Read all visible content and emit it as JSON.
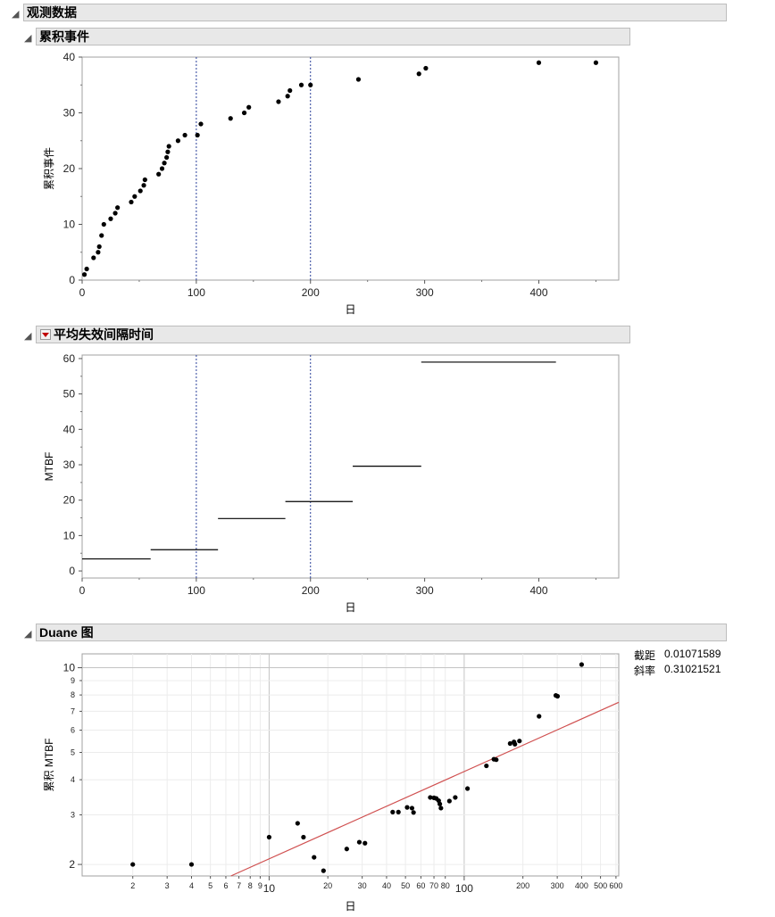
{
  "sections": {
    "observed": "观测数据",
    "cumulative": "累积事件",
    "mtbf": "平均失效间隔时间",
    "duane": "Duane 图"
  },
  "stats": {
    "intercept_label": "截距",
    "intercept_value": "0.01071589",
    "slope_label": "斜率",
    "slope_value": "0.31021521"
  },
  "chart_data": [
    {
      "type": "scatter",
      "title": "累积事件",
      "xlabel": "日",
      "ylabel": "累积事件",
      "xlim": [
        0,
        470
      ],
      "ylim": [
        0,
        40
      ],
      "xticks": [
        0,
        100,
        200,
        300,
        400
      ],
      "yticks": [
        0,
        10,
        20,
        30,
        40
      ],
      "vlines": [
        100,
        200
      ],
      "points": [
        [
          2,
          1
        ],
        [
          4,
          2
        ],
        [
          10,
          4
        ],
        [
          14,
          5
        ],
        [
          15,
          6
        ],
        [
          17,
          8
        ],
        [
          19,
          10
        ],
        [
          25,
          11
        ],
        [
          29,
          12
        ],
        [
          31,
          13
        ],
        [
          43,
          14
        ],
        [
          46,
          15
        ],
        [
          51,
          16
        ],
        [
          54,
          17
        ],
        [
          55,
          18
        ],
        [
          67,
          19
        ],
        [
          70,
          20
        ],
        [
          72,
          21
        ],
        [
          74,
          22
        ],
        [
          75,
          23
        ],
        [
          76,
          24
        ],
        [
          84,
          25
        ],
        [
          90,
          26
        ],
        [
          101,
          26
        ],
        [
          104,
          28
        ],
        [
          130,
          29
        ],
        [
          142,
          30
        ],
        [
          146,
          31
        ],
        [
          172,
          32
        ],
        [
          180,
          33
        ],
        [
          182,
          34
        ],
        [
          192,
          35
        ],
        [
          200,
          35
        ],
        [
          242,
          36
        ],
        [
          295,
          37
        ],
        [
          301,
          38
        ],
        [
          400,
          39
        ],
        [
          450,
          39
        ]
      ]
    },
    {
      "type": "step",
      "title": "平均失效间隔时间",
      "xlabel": "日",
      "ylabel": "MTBF",
      "xlim": [
        0,
        470
      ],
      "ylim": [
        -2,
        61
      ],
      "xticks": [
        0,
        100,
        200,
        300,
        400
      ],
      "yticks": [
        0,
        10,
        20,
        30,
        40,
        50,
        60
      ],
      "vlines": [
        100,
        200
      ],
      "segments": [
        {
          "x0": 0,
          "x1": 60,
          "y": 3.4
        },
        {
          "x0": 60,
          "x1": 119,
          "y": 6.0
        },
        {
          "x0": 119,
          "x1": 178,
          "y": 14.8
        },
        {
          "x0": 178,
          "x1": 237,
          "y": 19.6
        },
        {
          "x0": 237,
          "x1": 297,
          "y": 29.6
        },
        {
          "x0": 297,
          "x1": 415,
          "y": 59.0
        }
      ]
    },
    {
      "type": "scatter",
      "title": "Duane 图",
      "xlabel": "日",
      "ylabel": "累积 MTBF",
      "xscale": "log",
      "yscale": "log",
      "xlim": [
        1.1,
        620
      ],
      "ylim": [
        1.82,
        11.2
      ],
      "xticks": [
        2,
        3,
        4,
        5,
        6,
        7,
        8,
        9,
        10,
        20,
        30,
        40,
        50,
        60,
        70,
        80,
        100,
        200,
        300,
        400,
        500,
        600
      ],
      "xtick_labels": {
        "2": "2",
        "3": "3",
        "4": "4",
        "5": "5",
        "6": "6",
        "7": "7",
        "8": "8",
        "9": "9",
        "10": "10",
        "20": "20",
        "30": "30",
        "40": "40",
        "50": "50",
        "60": "60",
        "70": "70",
        "80": "80",
        "100": "100",
        "200": "200",
        "300": "300",
        "400": "400",
        "500": "500",
        "600": "600"
      },
      "yticks": [
        2,
        3,
        4,
        5,
        6,
        7,
        8,
        9,
        10
      ],
      "major_x": [
        10,
        100
      ],
      "fit_line": {
        "intercept": 0.01071589,
        "slope": 0.31021521,
        "color": "#d05050"
      },
      "points": [
        [
          2,
          2.0
        ],
        [
          4,
          2.0
        ],
        [
          10,
          2.5
        ],
        [
          14,
          2.8
        ],
        [
          15,
          2.5
        ],
        [
          17,
          2.12
        ],
        [
          19,
          1.9
        ],
        [
          25,
          2.27
        ],
        [
          29,
          2.4
        ],
        [
          31,
          2.38
        ],
        [
          43,
          3.07
        ],
        [
          46,
          3.07
        ],
        [
          51,
          3.19
        ],
        [
          54,
          3.17
        ],
        [
          55,
          3.06
        ],
        [
          67,
          3.46
        ],
        [
          70,
          3.45
        ],
        [
          72,
          3.43
        ],
        [
          74,
          3.37
        ],
        [
          75,
          3.28
        ],
        [
          76,
          3.17
        ],
        [
          84,
          3.36
        ],
        [
          90,
          3.46
        ],
        [
          104,
          3.72
        ],
        [
          130,
          4.48
        ],
        [
          142,
          4.73
        ],
        [
          146,
          4.71
        ],
        [
          172,
          5.38
        ],
        [
          180,
          5.45
        ],
        [
          182,
          5.35
        ],
        [
          192,
          5.49
        ],
        [
          242,
          6.72
        ],
        [
          295,
          7.97
        ],
        [
          301,
          7.92
        ],
        [
          400,
          10.26
        ]
      ]
    }
  ]
}
